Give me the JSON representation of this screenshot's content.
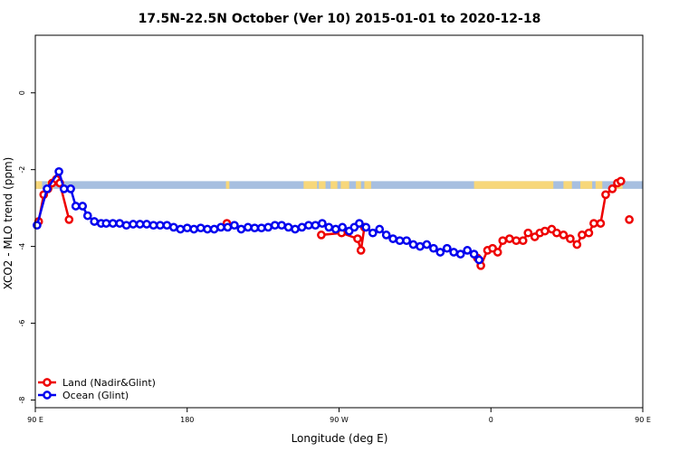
{
  "chart_data": {
    "type": "line",
    "title": "17.5N-22.5N October (Ver 10)   2015-01-01 to 2020-12-18",
    "xlabel": "Longitude (deg E)",
    "ylabel": "XCO2 - MLO trend (ppm)",
    "xlim": [
      90,
      450
    ],
    "ylim": [
      -8.2,
      1.5
    ],
    "x_ticks": [
      {
        "value": 90,
        "label": "90 E"
      },
      {
        "value": 180,
        "label": "180"
      },
      {
        "value": 270,
        "label": "90 W"
      },
      {
        "value": 360,
        "label": "0"
      },
      {
        "value": 450,
        "label": "90 E"
      },
      {
        "value": 540,
        "label": "180"
      }
    ],
    "y_ticks": [
      {
        "value": 0,
        "label": "0"
      },
      {
        "value": -2,
        "label": "-2"
      },
      {
        "value": -4,
        "label": "-4"
      },
      {
        "value": -6,
        "label": "-6"
      },
      {
        "value": -8,
        "label": "-8"
      }
    ],
    "grid": false,
    "legend_position": "bottom-left",
    "land_band": {
      "y_top": -2.3,
      "y_bottom": -2.5,
      "ocean_color": "#a7bfe0",
      "land_color": "#f7d77a"
    },
    "series": [
      {
        "name": "Land (Nadir&Glint)",
        "color": "#ee0000",
        "segments": [
          [
            [
              92,
              -3.35
            ],
            [
              95,
              -2.65
            ],
            [
              97.5,
              -2.5
            ],
            [
              100,
              -2.35
            ],
            [
              102.5,
              -2.25
            ],
            [
              104.5,
              -2.35
            ],
            [
              110,
              -3.3
            ]
          ],
          [
            [
              203.5,
              -3.4
            ]
          ],
          [
            [
              259.5,
              -3.7
            ],
            [
              271.5,
              -3.65
            ],
            [
              281,
              -3.8
            ],
            [
              283,
              -4.1
            ],
            [
              285,
              -3.5
            ]
          ],
          [
            [
              352,
              -4.3
            ],
            [
              354,
              -4.5
            ],
            [
              358,
              -4.1
            ],
            [
              361,
              -4.05
            ],
            [
              364,
              -4.15
            ],
            [
              367,
              -3.85
            ],
            [
              371,
              -3.8
            ],
            [
              375,
              -3.85
            ],
            [
              379,
              -3.85
            ],
            [
              382,
              -3.65
            ],
            [
              386,
              -3.75
            ],
            [
              389,
              -3.65
            ],
            [
              392,
              -3.6
            ],
            [
              396,
              -3.55
            ],
            [
              399,
              -3.65
            ],
            [
              403,
              -3.7
            ],
            [
              407,
              -3.8
            ],
            [
              411,
              -3.95
            ],
            [
              414,
              -3.7
            ],
            [
              418,
              -3.65
            ],
            [
              421,
              -3.4
            ],
            [
              425,
              -3.4
            ],
            [
              428,
              -2.65
            ],
            [
              432,
              -2.5
            ],
            [
              435,
              -2.35
            ],
            [
              437,
              -2.3
            ]
          ],
          [
            [
              442,
              -3.3
            ]
          ]
        ]
      },
      {
        "name": "Ocean (Glint)",
        "color": "#0000ee",
        "segments": [
          [
            [
              91,
              -3.45
            ],
            [
              97,
              -2.5
            ],
            [
              104,
              -2.05
            ],
            [
              107,
              -2.5
            ],
            [
              111,
              -2.5
            ],
            [
              114,
              -2.95
            ],
            [
              118,
              -2.95
            ],
            [
              121,
              -3.2
            ],
            [
              125,
              -3.35
            ],
            [
              129,
              -3.4
            ],
            [
              132,
              -3.4
            ],
            [
              136,
              -3.4
            ],
            [
              140,
              -3.4
            ],
            [
              144,
              -3.45
            ],
            [
              148,
              -3.42
            ],
            [
              152,
              -3.42
            ],
            [
              156,
              -3.42
            ],
            [
              160,
              -3.45
            ],
            [
              164,
              -3.45
            ],
            [
              168,
              -3.45
            ],
            [
              172,
              -3.5
            ],
            [
              176,
              -3.55
            ],
            [
              180,
              -3.52
            ],
            [
              184,
              -3.55
            ],
            [
              188,
              -3.52
            ],
            [
              192,
              -3.55
            ],
            [
              196,
              -3.55
            ],
            [
              200,
              -3.5
            ],
            [
              204,
              -3.5
            ],
            [
              208,
              -3.45
            ],
            [
              212,
              -3.55
            ],
            [
              216,
              -3.5
            ],
            [
              220,
              -3.52
            ],
            [
              224,
              -3.52
            ],
            [
              228,
              -3.5
            ],
            [
              232,
              -3.45
            ],
            [
              236,
              -3.45
            ],
            [
              240,
              -3.5
            ],
            [
              244,
              -3.55
            ],
            [
              248,
              -3.5
            ],
            [
              252,
              -3.45
            ],
            [
              256,
              -3.45
            ],
            [
              260,
              -3.4
            ],
            [
              264,
              -3.5
            ],
            [
              268,
              -3.55
            ],
            [
              272,
              -3.5
            ],
            [
              276,
              -3.6
            ],
            [
              279,
              -3.5
            ],
            [
              282,
              -3.4
            ],
            [
              286,
              -3.5
            ],
            [
              290,
              -3.65
            ],
            [
              294,
              -3.55
            ],
            [
              298,
              -3.7
            ],
            [
              302,
              -3.8
            ],
            [
              306,
              -3.85
            ],
            [
              310,
              -3.85
            ],
            [
              314,
              -3.95
            ],
            [
              318,
              -4.0
            ],
            [
              322,
              -3.95
            ],
            [
              326,
              -4.05
            ],
            [
              330,
              -4.15
            ],
            [
              334,
              -4.05
            ],
            [
              338,
              -4.15
            ],
            [
              342,
              -4.2
            ],
            [
              346,
              -4.1
            ],
            [
              350,
              -4.2
            ],
            [
              353,
              -4.35
            ]
          ]
        ]
      }
    ]
  },
  "legend": {
    "items": [
      {
        "label": "Land (Nadir&Glint)",
        "color": "#ee0000"
      },
      {
        "label": "Ocean (Glint)",
        "color": "#0000ee"
      }
    ]
  }
}
